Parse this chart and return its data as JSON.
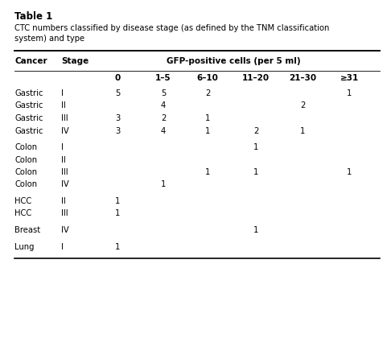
{
  "title": "Table 1",
  "subtitle": "CTC numbers classified by disease stage (as defined by the TNM classification\nsystem) and type",
  "col_headers_row2": [
    "0",
    "1–5",
    "6–10",
    "11–20",
    "21–30",
    "≥31"
  ],
  "rows": [
    [
      "Gastric",
      "I",
      "5",
      "5",
      "2",
      "",
      "",
      "1"
    ],
    [
      "Gastric",
      "II",
      "",
      "4",
      "",
      "",
      "2",
      ""
    ],
    [
      "Gastric",
      "III",
      "3",
      "2",
      "1",
      "",
      "",
      ""
    ],
    [
      "Gastric",
      "IV",
      "3",
      "4",
      "1",
      "2",
      "1",
      ""
    ],
    [
      "Colon",
      "I",
      "",
      "",
      "",
      "1",
      "",
      ""
    ],
    [
      "Colon",
      "II",
      "",
      "",
      "",
      "",
      "",
      ""
    ],
    [
      "Colon",
      "III",
      "",
      "",
      "1",
      "1",
      "",
      "1"
    ],
    [
      "Colon",
      "IV",
      "",
      "1",
      "",
      "",
      "",
      ""
    ],
    [
      "HCC",
      "II",
      "1",
      "",
      "",
      "",
      "",
      ""
    ],
    [
      "HCC",
      "III",
      "1",
      "",
      "",
      "",
      "",
      ""
    ],
    [
      "Breast",
      "IV",
      "",
      "",
      "",
      "1",
      "",
      ""
    ],
    [
      "Lung",
      "I",
      "1",
      "",
      "",
      "",
      "",
      ""
    ]
  ],
  "group_breaks": [
    4,
    8,
    10,
    11
  ],
  "background_color": "#ffffff",
  "title_fontsize": 8.5,
  "subtitle_fontsize": 7.2,
  "header_fontsize": 7.5,
  "data_fontsize": 7.2
}
